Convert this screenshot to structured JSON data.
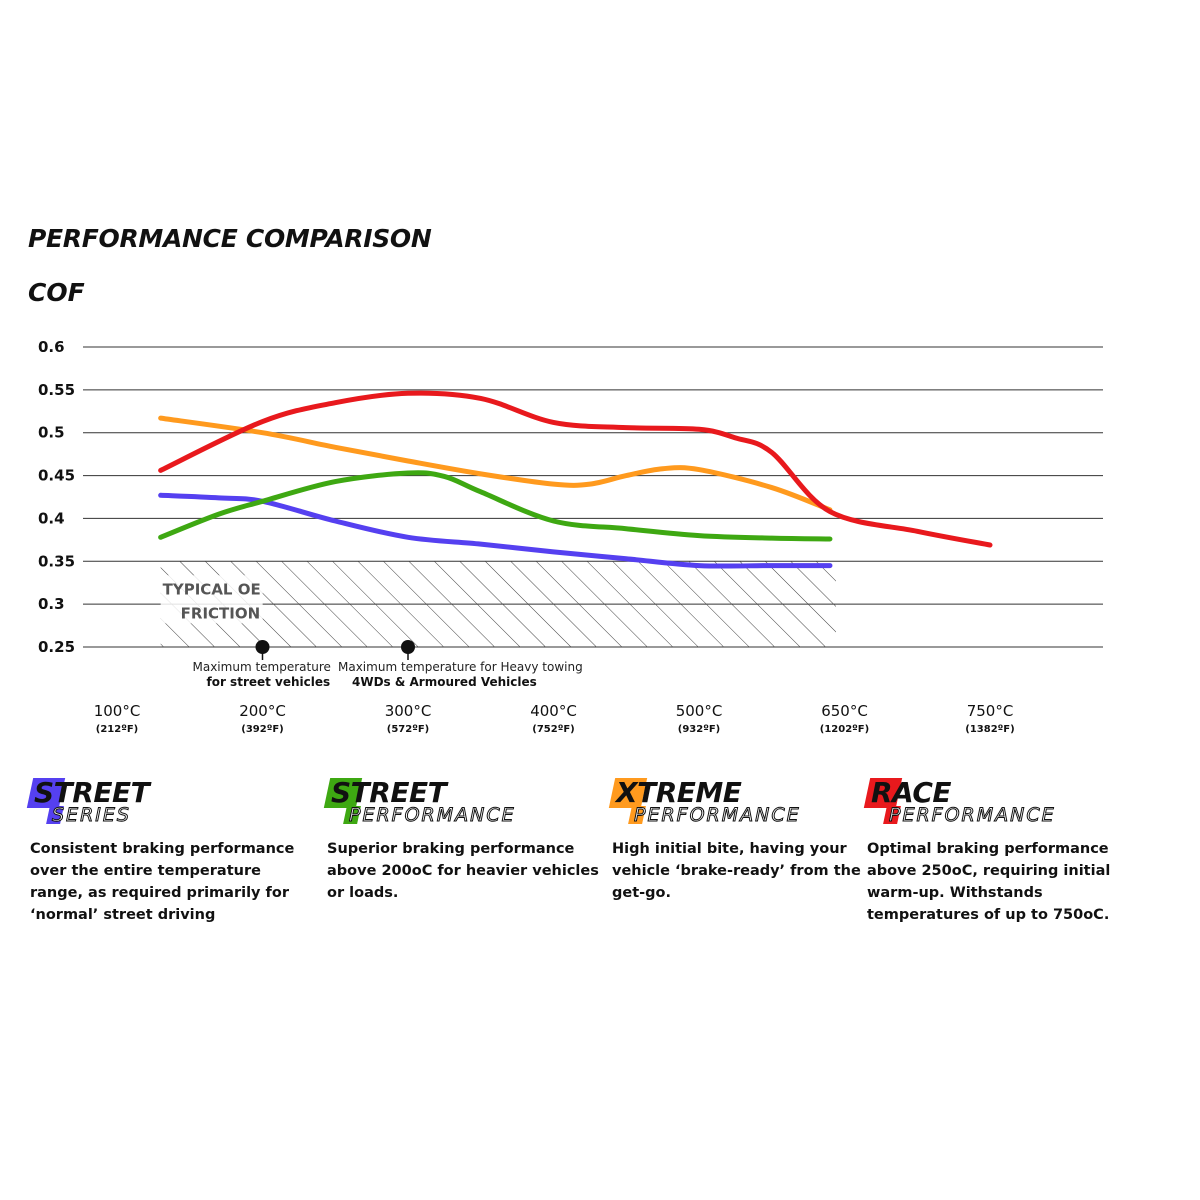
{
  "header": {
    "title": "PERFORMANCE COMPARISON",
    "subtitle": "COF"
  },
  "chart_data": {
    "type": "line",
    "title": "PERFORMANCE COMPARISON",
    "ylabel": "COF",
    "ylim": [
      0.25,
      0.6
    ],
    "yticks": [
      "0.6",
      "0.55",
      "0.5",
      "0.45",
      "0.4",
      "0.35",
      "0.3",
      "0.25"
    ],
    "yticks_values": [
      0.6,
      0.55,
      0.5,
      0.45,
      0.4,
      0.35,
      0.3,
      0.25
    ],
    "x_categories": [
      {
        "c": "100°C",
        "f": "(212ºF)",
        "x": 100
      },
      {
        "c": "200°C",
        "f": "(392ºF)",
        "x": 200
      },
      {
        "c": "300°C",
        "f": "(572ºF)",
        "x": 300
      },
      {
        "c": "400°C",
        "f": "(752ºF)",
        "x": 400
      },
      {
        "c": "500°C",
        "f": "(932ºF)",
        "x": 500
      },
      {
        "c": "650°C",
        "f": "(1202ºF)",
        "x": 600
      },
      {
        "c": "750°C",
        "f": "(1382ºF)",
        "x": 700
      }
    ],
    "series": [
      {
        "name": "Street Series",
        "color": "#5540f0",
        "x": [
          130,
          170,
          200,
          250,
          300,
          350,
          400,
          450,
          500,
          550,
          590
        ],
        "y": [
          0.427,
          0.424,
          0.42,
          0.397,
          0.378,
          0.37,
          0.361,
          0.353,
          0.345,
          0.345,
          0.345
        ]
      },
      {
        "name": "Street Performance",
        "color": "#3ea812",
        "x": [
          130,
          170,
          200,
          250,
          300,
          325,
          350,
          400,
          450,
          500,
          550,
          590
        ],
        "y": [
          0.378,
          0.405,
          0.42,
          0.443,
          0.453,
          0.449,
          0.431,
          0.397,
          0.388,
          0.38,
          0.377,
          0.376
        ]
      },
      {
        "name": "Xtreme Performance",
        "color": "#ff9a1e",
        "x": [
          130,
          200,
          250,
          300,
          350,
          400,
          425,
          450,
          475,
          500,
          550,
          590
        ],
        "y": [
          0.517,
          0.5,
          0.483,
          0.467,
          0.452,
          0.44,
          0.44,
          0.45,
          0.458,
          0.457,
          0.436,
          0.41
        ]
      },
      {
        "name": "Race Performance",
        "color": "#e8191d",
        "x": [
          130,
          200,
          250,
          300,
          350,
          400,
          450,
          500,
          525,
          550,
          590,
          650,
          700
        ],
        "y": [
          0.456,
          0.513,
          0.535,
          0.546,
          0.54,
          0.512,
          0.506,
          0.504,
          0.494,
          0.477,
          0.408,
          0.385,
          0.369
        ]
      }
    ],
    "oe_band": {
      "label_line1": "TYPICAL OE",
      "label_line2": "FRICTION",
      "y_range": [
        0.25,
        0.35
      ],
      "x_range": [
        130,
        590
      ]
    },
    "annotations": [
      {
        "x": 200,
        "line1": "Maximum temperature",
        "line2": "for street vehicles"
      },
      {
        "x": 300,
        "line1": "Maximum temperature for Heavy towing",
        "line2": "4WDs & Armoured Vehicles"
      }
    ]
  },
  "legend": [
    {
      "word1": "STREET",
      "word2": "SERIES",
      "color": "#5540f0",
      "desc": "Consistent braking performance over the entire temperature range, as required primarily for ‘normal’ street driving"
    },
    {
      "word1": "STREET",
      "word2": "PERFORMANCE",
      "color": "#3ea812",
      "desc": "Superior braking performance above 200oC for heavier vehicles or loads."
    },
    {
      "word1": "XTREME",
      "word2": "PERFORMANCE",
      "color": "#ff9a1e",
      "desc": "High initial bite, having your vehicle ‘brake-ready’ from the get-go."
    },
    {
      "word1": "RACE",
      "word2": "PERFORMANCE",
      "color": "#e8191d",
      "desc": "Optimal braking performance above 250oC, requiring initial warm-up. Withstands temperatures of up to 750oC."
    }
  ]
}
